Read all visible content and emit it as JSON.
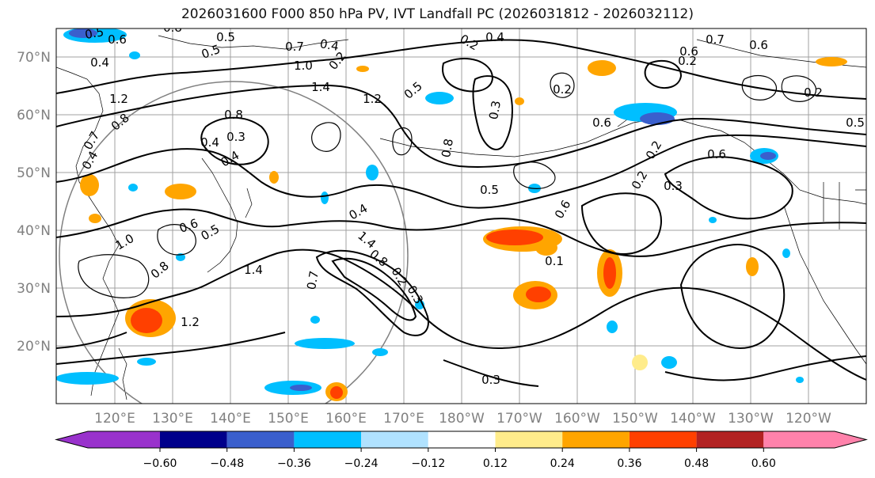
{
  "title": "2026031600 F000 850 hPa PV, IVT Landfall PC (2026031812 - 2026032112)",
  "lat_ticks": [
    "70°N",
    "60°N",
    "50°N",
    "40°N",
    "30°N",
    "20°N"
  ],
  "lon_ticks": [
    "120°E",
    "130°E",
    "140°E",
    "150°E",
    "160°E",
    "170°E",
    "180°W",
    "170°W",
    "160°W",
    "150°W",
    "140°W",
    "130°W",
    "120°W"
  ],
  "colorbar": {
    "colors": [
      "#9932cc",
      "#00008b",
      "#3a5fcd",
      "#00bfff",
      "#b0e2ff",
      "#ffffff",
      "#ffec8b",
      "#ffa500",
      "#ff4000",
      "#b22222",
      "#ff82ab"
    ],
    "tick_labels": [
      "−0.60",
      "−0.48",
      "−0.36",
      "−0.24",
      "−0.12",
      "0.12",
      "0.24",
      "0.36",
      "0.48",
      "0.60"
    ],
    "ticks": [
      -0.6,
      -0.48,
      -0.36,
      -0.24,
      -0.12,
      0.12,
      0.24,
      0.36,
      0.48,
      0.6
    ]
  },
  "contour_labels": [
    "0.5",
    "0.6",
    "0.8",
    "0.4",
    "0.5",
    "0.7",
    "1.0",
    "1.2",
    "0.8",
    "0.7",
    "0.4",
    "1.4",
    "1.2",
    "0.5",
    "0.8",
    "0.3",
    "0.4",
    "0.4",
    "0.2",
    "0.5",
    "0.4",
    "0.2",
    "0.4",
    "0.8",
    "0.3",
    "0.2",
    "0.6",
    "0.5",
    "0.4",
    "0.6",
    "0.5",
    "0.8",
    "1.0",
    "1.4",
    "1.2",
    "1.4",
    "0.8",
    "0.7",
    "0.2",
    "0.3",
    "0.6",
    "0.7",
    "0.6",
    "0.2",
    "0.2",
    "0.5",
    "0.2",
    "0.2",
    "0.3",
    "0.6",
    "0.6",
    "0.1",
    "0.3"
  ],
  "colors": {
    "contour": "#000000",
    "grid": "#a0a0a0",
    "axis_label": "#808080"
  }
}
